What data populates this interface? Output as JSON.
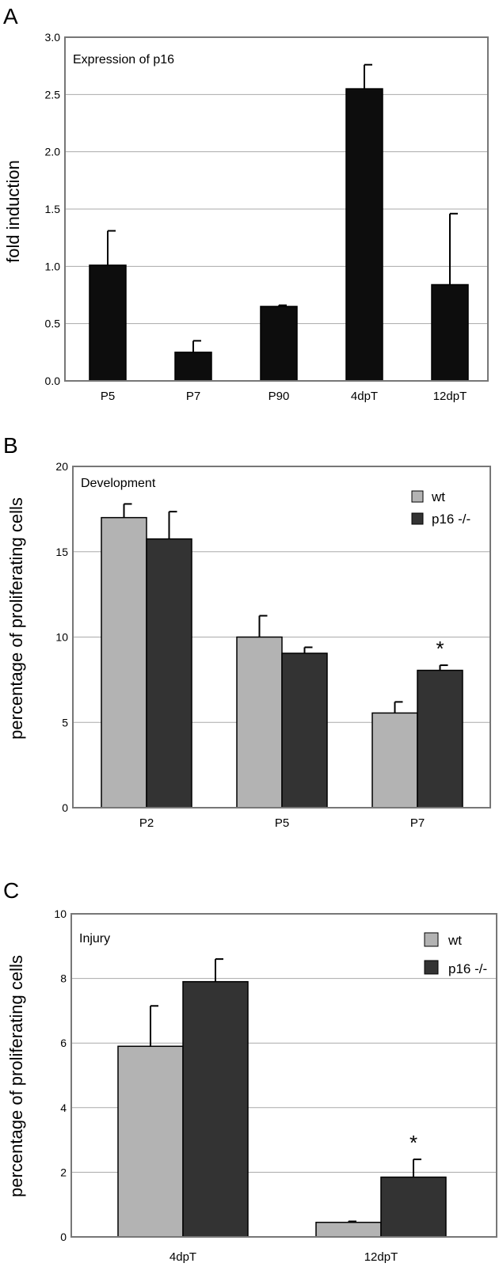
{
  "colors": {
    "black_bar": "#0d0d0d",
    "wt": "#b3b3b3",
    "ko": "#333333",
    "grid": "#aaaaaa",
    "frame": "#777777"
  },
  "chart_data": [
    {
      "panel": "A",
      "type": "bar",
      "title": "Expression of p16",
      "ylabel": "fold induction",
      "xlabel": "",
      "ylim": [
        0,
        3
      ],
      "yticks": [
        "0.0",
        "0.5",
        "1.0",
        "1.5",
        "2.0",
        "2.5",
        "3.0"
      ],
      "grid": true,
      "categories": [
        "P5",
        "P7",
        "P90",
        "4dpT",
        "12dpT"
      ],
      "series": [
        {
          "values": [
            1.01,
            0.25,
            0.65,
            2.55,
            0.84
          ],
          "errors": [
            0.3,
            0.1,
            0.01,
            0.21,
            0.62
          ]
        }
      ]
    },
    {
      "panel": "B",
      "type": "bar",
      "title": "Development",
      "ylabel": "percentage of proliferating cells",
      "xlabel": "",
      "ylim": [
        0,
        20
      ],
      "yticks": [
        "0",
        "5",
        "10",
        "15",
        "20"
      ],
      "grid": true,
      "legend": "top-right",
      "categories": [
        "P2",
        "P5",
        "P7"
      ],
      "series": [
        {
          "name": "wt",
          "values": [
            17.0,
            10.0,
            5.55
          ],
          "errors": [
            0.8,
            1.25,
            0.65
          ]
        },
        {
          "name": "p16 -/-",
          "values": [
            15.75,
            9.05,
            8.05
          ],
          "errors": [
            1.6,
            0.35,
            0.3
          ]
        }
      ],
      "annotations": [
        {
          "text": "*",
          "category": "P7",
          "series": 1
        }
      ]
    },
    {
      "panel": "C",
      "type": "bar",
      "title": "Injury",
      "ylabel": "percentage of proliferating cells",
      "xlabel": "",
      "ylim": [
        0,
        10
      ],
      "yticks": [
        "0",
        "2",
        "4",
        "6",
        "8",
        "10"
      ],
      "grid": true,
      "legend": "top-right",
      "categories": [
        "4dpT",
        "12dpT"
      ],
      "series": [
        {
          "name": "wt",
          "values": [
            5.9,
            0.45
          ],
          "errors": [
            1.25,
            0.03
          ]
        },
        {
          "name": "p16 -/-",
          "values": [
            7.9,
            1.85
          ],
          "errors": [
            0.7,
            0.55
          ]
        }
      ],
      "annotations": [
        {
          "text": "*",
          "category": "12dpT",
          "series": 1
        }
      ]
    }
  ]
}
